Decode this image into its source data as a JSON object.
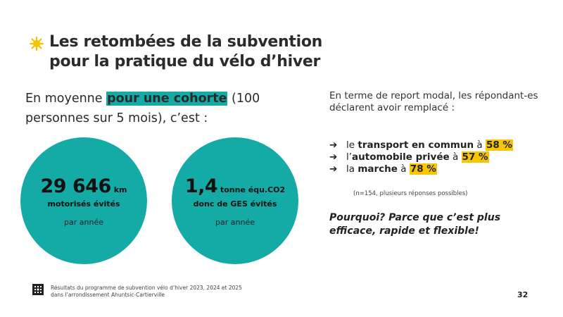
{
  "title": {
    "line1": "Les retombées de la subvention",
    "line2": "pour la pratique du vélo d’hiver"
  },
  "intro": {
    "before": "En moyenne ",
    "highlight": "pour une cohorte",
    "after": " (100 personnes sur 5 mois), c’est :"
  },
  "stats": [
    {
      "number": "29 646",
      "unit": " km",
      "caption": "motorisés évités",
      "period": "par année"
    },
    {
      "number": "1,4",
      "unit": " tonne équ.CO2",
      "caption": "donc de GES évités",
      "period": "par année"
    }
  ],
  "modal": {
    "intro": "En terme de report modal, les répondant-es déclarent avoir remplacé :",
    "arrow": "➔",
    "items": [
      {
        "pre": "le ",
        "bold": "transport en commun",
        "mid": " à ",
        "pct": "58 %"
      },
      {
        "pre": "l’",
        "bold": "automobile privée",
        "mid": " à ",
        "pct": "57 %"
      },
      {
        "pre": "la ",
        "bold": "marche",
        "mid": " à ",
        "pct": "78 %"
      }
    ],
    "note": "(n=154, plusieurs réponses possibles)"
  },
  "why": "Pourquoi? Parce que c’est plus efficace, rapide et flexible!",
  "footer": {
    "line1": "Résultats du programme de subvention vélo d’hiver 2023, 2024 et 2025",
    "line2": "dans l’arrondissement Ahuntsic-Cartierville"
  },
  "page_number": "32",
  "colors": {
    "teal": "#14aaa6",
    "yellow": "#f7c600"
  }
}
